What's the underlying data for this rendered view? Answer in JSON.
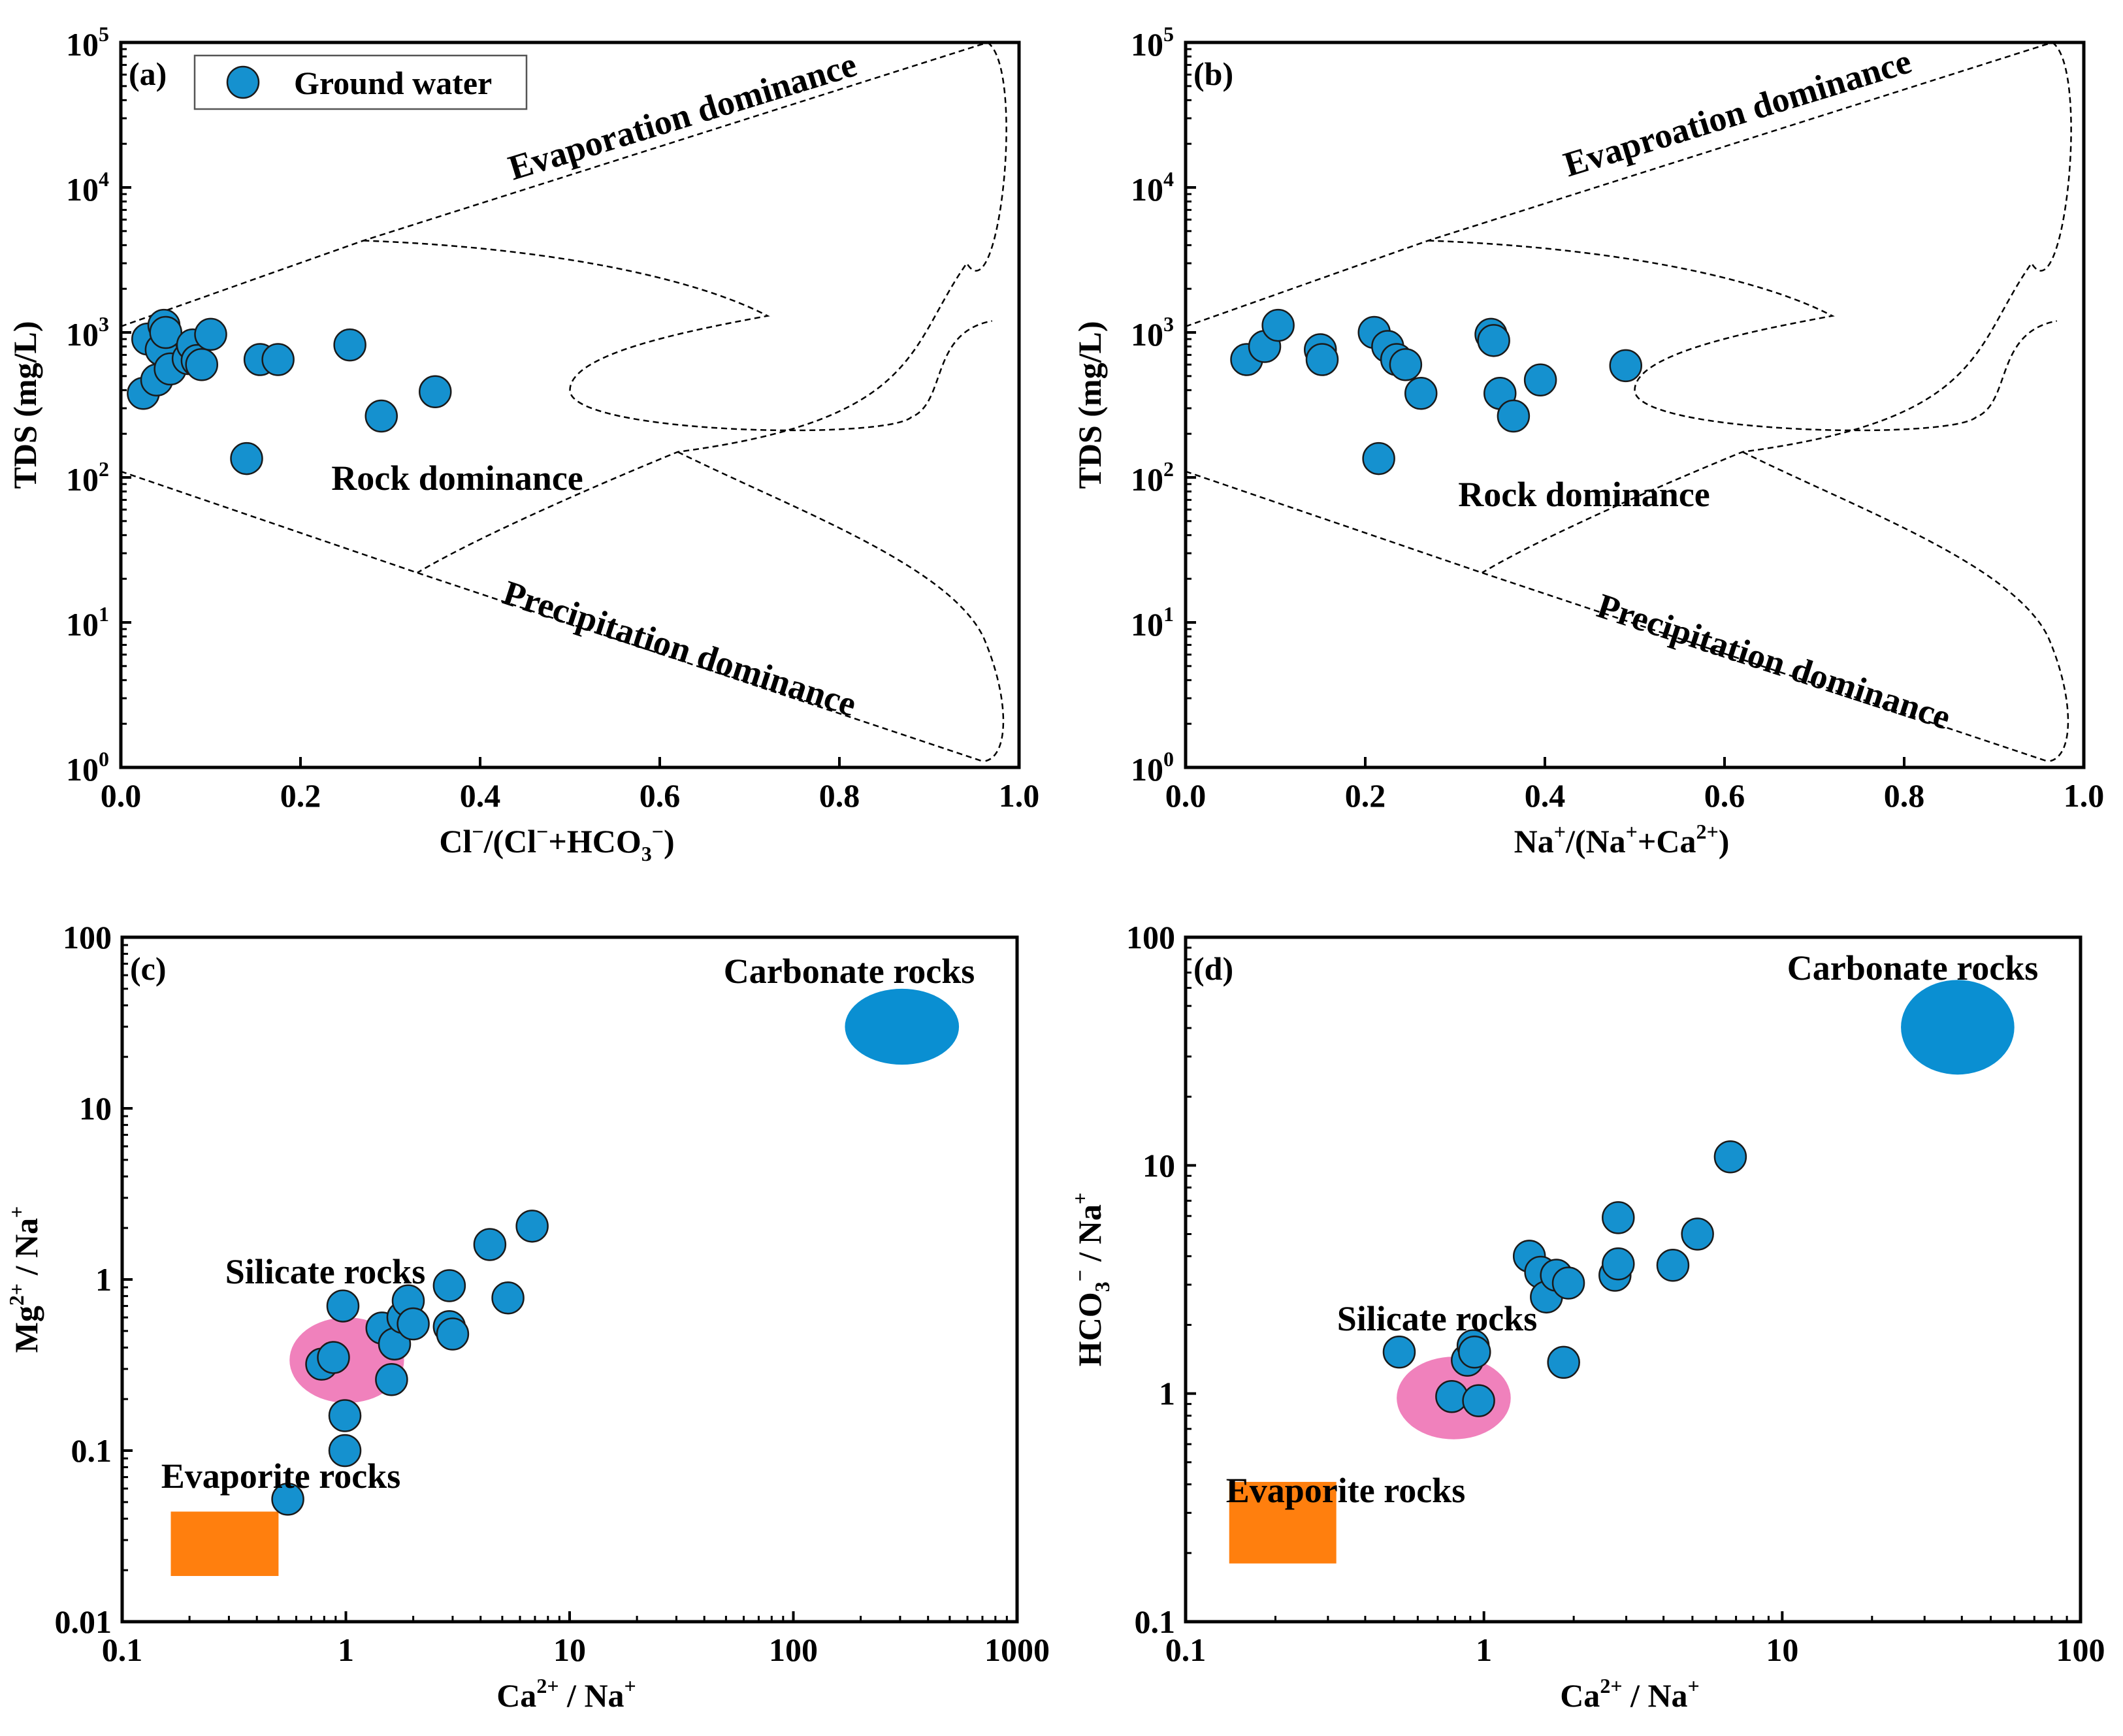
{
  "chart_data": [
    {
      "id": "a",
      "panel_label": "(a)",
      "type": "scatter",
      "x_scale": "linear",
      "y_scale": "log",
      "xlim": [
        0.0,
        1.0
      ],
      "ylim": [
        1,
        100000
      ],
      "x_ticks": [
        0.0,
        0.2,
        0.4,
        0.6,
        0.8,
        1.0
      ],
      "x_tick_labels": [
        "0.0",
        "0.2",
        "0.4",
        "0.6",
        "0.8",
        "1.0"
      ],
      "y_ticks": [
        1,
        10,
        100,
        1000,
        10000,
        100000
      ],
      "y_tick_exponents": [
        "0",
        "1",
        "2",
        "3",
        "4",
        "5"
      ],
      "ylabel": "TDS (mg/L)",
      "xlabel": {
        "parts": [
          "Cl",
          "−",
          "/(Cl",
          "−",
          "+HCO",
          "3",
          "−",
          ")"
        ],
        "styles": [
          "n",
          "sup",
          "n",
          "sup",
          "n",
          "sub",
          "sup",
          "n"
        ]
      },
      "legend": {
        "label": "Ground water",
        "position": "top-left"
      },
      "series": [
        {
          "name": "Ground water",
          "color": "#1591cf",
          "points": [
            {
              "x": 0.025,
              "y": 380
            },
            {
              "x": 0.03,
              "y": 900
            },
            {
              "x": 0.04,
              "y": 470
            },
            {
              "x": 0.045,
              "y": 760
            },
            {
              "x": 0.048,
              "y": 1120
            },
            {
              "x": 0.05,
              "y": 1000
            },
            {
              "x": 0.055,
              "y": 560
            },
            {
              "x": 0.075,
              "y": 660
            },
            {
              "x": 0.08,
              "y": 820
            },
            {
              "x": 0.085,
              "y": 640
            },
            {
              "x": 0.09,
              "y": 600
            },
            {
              "x": 0.1,
              "y": 970
            },
            {
              "x": 0.14,
              "y": 135
            },
            {
              "x": 0.155,
              "y": 650
            },
            {
              "x": 0.175,
              "y": 650
            },
            {
              "x": 0.255,
              "y": 820
            },
            {
              "x": 0.29,
              "y": 265
            },
            {
              "x": 0.35,
              "y": 390
            }
          ]
        }
      ],
      "envelope": {
        "upper_line": [
          [
            0.0,
            1100
          ],
          [
            0.27,
            4300
          ],
          [
            0.965,
            100000
          ]
        ],
        "lower_line": [
          [
            0.0,
            110
          ],
          [
            0.33,
            22
          ],
          [
            0.96,
            1.1
          ]
        ],
        "inner_curve": [
          [
            0.27,
            4300
          ],
          [
            0.72,
            1300
          ],
          [
            0.97,
            600
          ]
        ]
      },
      "annotations": [
        {
          "text": "Evaporation dominance",
          "role": "evaporation-label"
        },
        {
          "text": "Rock dominance",
          "role": "rock-label"
        },
        {
          "text": "Precipitation dominance",
          "role": "precipitation-label"
        }
      ]
    },
    {
      "id": "b",
      "panel_label": "(b)",
      "type": "scatter",
      "x_scale": "linear",
      "y_scale": "log",
      "xlim": [
        0.0,
        1.0
      ],
      "ylim": [
        1,
        100000
      ],
      "x_ticks": [
        0.0,
        0.2,
        0.4,
        0.6,
        0.8,
        1.0
      ],
      "x_tick_labels": [
        "0.0",
        "0.2",
        "0.4",
        "0.6",
        "0.8",
        "1.0"
      ],
      "y_ticks": [
        1,
        10,
        100,
        1000,
        10000,
        100000
      ],
      "y_tick_exponents": [
        "0",
        "1",
        "2",
        "3",
        "4",
        "5"
      ],
      "ylabel": "TDS (mg/L)",
      "xlabel": {
        "parts": [
          "Na",
          "+",
          "/(Na",
          "+",
          "+Ca",
          "2+",
          ")"
        ],
        "styles": [
          "n",
          "sup",
          "n",
          "sup",
          "n",
          "sup",
          "n"
        ]
      },
      "series": [
        {
          "name": "Ground water",
          "color": "#1591cf",
          "points": [
            {
              "x": 0.068,
              "y": 650
            },
            {
              "x": 0.088,
              "y": 800
            },
            {
              "x": 0.103,
              "y": 1120
            },
            {
              "x": 0.15,
              "y": 760
            },
            {
              "x": 0.152,
              "y": 650
            },
            {
              "x": 0.21,
              "y": 1000
            },
            {
              "x": 0.225,
              "y": 800
            },
            {
              "x": 0.235,
              "y": 650
            },
            {
              "x": 0.245,
              "y": 600
            },
            {
              "x": 0.215,
              "y": 135
            },
            {
              "x": 0.262,
              "y": 380
            },
            {
              "x": 0.34,
              "y": 970
            },
            {
              "x": 0.343,
              "y": 880
            },
            {
              "x": 0.35,
              "y": 380
            },
            {
              "x": 0.365,
              "y": 265
            },
            {
              "x": 0.395,
              "y": 470
            },
            {
              "x": 0.49,
              "y": 590
            }
          ]
        }
      ],
      "envelope": {
        "upper_line": [
          [
            0.0,
            1100
          ],
          [
            0.27,
            4300
          ],
          [
            0.965,
            100000
          ]
        ],
        "lower_line": [
          [
            0.0,
            110
          ],
          [
            0.33,
            22
          ],
          [
            0.96,
            1.1
          ]
        ],
        "inner_curve": [
          [
            0.27,
            4300
          ],
          [
            0.72,
            1300
          ],
          [
            0.97,
            600
          ]
        ]
      },
      "annotations": [
        {
          "text": "Evaproation dominance",
          "role": "evaporation-label"
        },
        {
          "text": "Rock  dominance",
          "role": "rock-label"
        },
        {
          "text": "Precipitation dominance",
          "role": "precipitation-label"
        }
      ]
    },
    {
      "id": "c",
      "panel_label": "(c)",
      "type": "scatter",
      "x_scale": "log",
      "y_scale": "log",
      "xlim": [
        0.1,
        1000
      ],
      "ylim": [
        0.01,
        100
      ],
      "x_ticks": [
        0.1,
        1,
        10,
        100,
        1000
      ],
      "x_tick_labels": [
        "0.1",
        "1",
        "10",
        "100",
        "1000"
      ],
      "y_ticks": [
        0.01,
        0.1,
        1,
        10,
        100
      ],
      "y_tick_labels": [
        "0.01",
        "0.1",
        "1",
        "10",
        "100"
      ],
      "ylabel": {
        "parts": [
          "Mg",
          "2+",
          " / Na",
          "+"
        ],
        "styles": [
          "n",
          "sup",
          "n",
          "sup"
        ]
      },
      "xlabel": {
        "parts": [
          "Ca",
          "2+",
          " / Na",
          "+"
        ],
        "styles": [
          "n",
          "sup",
          "n",
          "sup"
        ]
      },
      "series": [
        {
          "name": "Ground water",
          "color": "#1591cf",
          "points": [
            {
              "x": 0.55,
              "y": 0.052
            },
            {
              "x": 0.99,
              "y": 0.1
            },
            {
              "x": 0.99,
              "y": 0.16
            },
            {
              "x": 0.78,
              "y": 0.32
            },
            {
              "x": 0.88,
              "y": 0.35
            },
            {
              "x": 0.97,
              "y": 0.7
            },
            {
              "x": 1.45,
              "y": 0.52
            },
            {
              "x": 1.6,
              "y": 0.26
            },
            {
              "x": 1.65,
              "y": 0.42
            },
            {
              "x": 1.8,
              "y": 0.6
            },
            {
              "x": 1.9,
              "y": 0.75
            },
            {
              "x": 2.0,
              "y": 0.55
            },
            {
              "x": 2.9,
              "y": 0.92
            },
            {
              "x": 2.9,
              "y": 0.53
            },
            {
              "x": 3.0,
              "y": 0.48
            },
            {
              "x": 4.4,
              "y": 1.6
            },
            {
              "x": 5.3,
              "y": 0.78
            },
            {
              "x": 6.8,
              "y": 2.05
            }
          ]
        }
      ],
      "regions": [
        {
          "name": "Carbonate rocks",
          "shape": "ellipse",
          "color": "#0a8fd2",
          "x_range": [
            170,
            550
          ],
          "y_range": [
            18,
            50
          ]
        },
        {
          "name": "Silicate rocks",
          "shape": "ellipse",
          "color": "#f081bc",
          "x_range": [
            0.56,
            1.82
          ],
          "y_range": [
            0.19,
            0.6
          ]
        },
        {
          "name": "Evaporite rocks",
          "shape": "rect",
          "color": "#ff7f0e",
          "x_range": [
            0.165,
            0.5
          ],
          "y_range": [
            0.0185,
            0.044
          ]
        }
      ],
      "annotations": [
        {
          "text": "Carbonate rocks",
          "role": "carbonate-label"
        },
        {
          "text": "Silicate rocks",
          "role": "silicate-label"
        },
        {
          "text": "Evaporite rocks",
          "role": "evaporite-label"
        }
      ]
    },
    {
      "id": "d",
      "panel_label": "(d)",
      "type": "scatter",
      "x_scale": "log",
      "y_scale": "log",
      "xlim": [
        0.1,
        100
      ],
      "ylim": [
        0.1,
        100
      ],
      "x_ticks": [
        0.1,
        1,
        10,
        100
      ],
      "x_tick_labels": [
        "0.1",
        "1",
        "10",
        "100"
      ],
      "y_ticks": [
        0.1,
        1,
        10,
        100
      ],
      "y_tick_labels": [
        "0.1",
        "1",
        "10",
        "100"
      ],
      "ylabel": {
        "parts": [
          "HCO",
          "3",
          "−",
          " / Na",
          "+"
        ],
        "styles": [
          "n",
          "sub",
          "sup",
          "n",
          "sup"
        ]
      },
      "xlabel": {
        "parts": [
          "Ca",
          "2+",
          " / Na",
          "+"
        ],
        "styles": [
          "n",
          "sup",
          "n",
          "sup"
        ]
      },
      "series": [
        {
          "name": "Ground water",
          "color": "#1591cf",
          "points": [
            {
              "x": 0.52,
              "y": 1.52
            },
            {
              "x": 0.78,
              "y": 0.97
            },
            {
              "x": 0.88,
              "y": 1.4
            },
            {
              "x": 0.92,
              "y": 1.62
            },
            {
              "x": 0.93,
              "y": 1.52
            },
            {
              "x": 0.96,
              "y": 0.93
            },
            {
              "x": 1.42,
              "y": 4.0
            },
            {
              "x": 1.55,
              "y": 3.4
            },
            {
              "x": 1.62,
              "y": 2.65
            },
            {
              "x": 1.75,
              "y": 3.3
            },
            {
              "x": 1.85,
              "y": 1.37
            },
            {
              "x": 1.92,
              "y": 3.05
            },
            {
              "x": 2.75,
              "y": 3.3
            },
            {
              "x": 2.82,
              "y": 5.9
            },
            {
              "x": 2.82,
              "y": 3.7
            },
            {
              "x": 4.3,
              "y": 3.65
            },
            {
              "x": 5.2,
              "y": 5.0
            },
            {
              "x": 6.7,
              "y": 10.9
            }
          ]
        }
      ],
      "regions": [
        {
          "name": "Carbonate rocks",
          "shape": "ellipse",
          "color": "#0a8fd2",
          "x_range": [
            25,
            60
          ],
          "y_range": [
            25,
            65
          ]
        },
        {
          "name": "Silicate rocks",
          "shape": "ellipse",
          "color": "#f081bc",
          "x_range": [
            0.51,
            1.23
          ],
          "y_range": [
            0.63,
            1.45
          ]
        },
        {
          "name": "Evaporite rocks",
          "shape": "rect",
          "color": "#ff7f0e",
          "x_range": [
            0.14,
            0.32
          ],
          "y_range": [
            0.18,
            0.41
          ]
        }
      ],
      "annotations": [
        {
          "text": "Carbonate rocks",
          "role": "carbonate-label"
        },
        {
          "text": "Silicate rocks",
          "role": "silicate-label"
        },
        {
          "text": "Evaporite rocks",
          "role": "evaporite-label"
        }
      ]
    }
  ]
}
